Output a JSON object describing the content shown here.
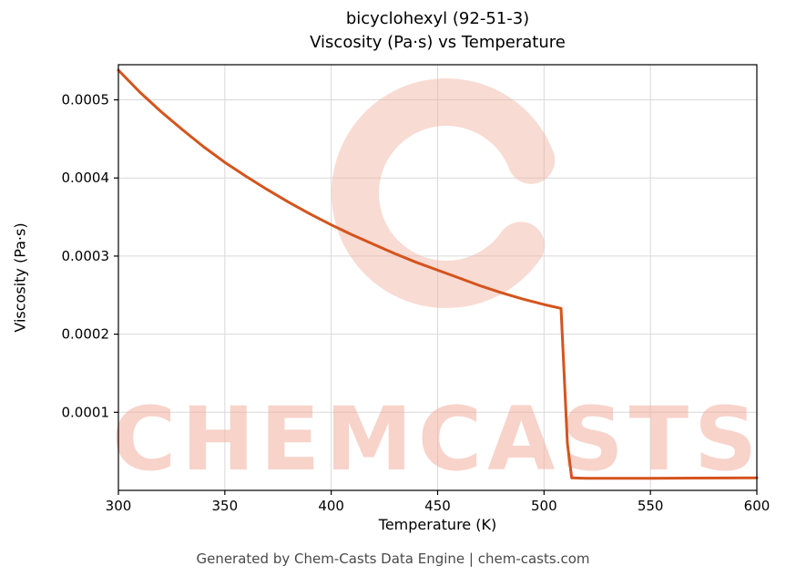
{
  "chart_data": {
    "type": "line",
    "title_line1": "bicyclohexyl (92-51-3)",
    "title_line2": "Viscosity (Pa·s) vs Temperature",
    "xlabel": "Temperature (K)",
    "ylabel": "Viscosity (Pa·s)",
    "xlim": [
      300,
      600
    ],
    "ylim": [
      0,
      0.000545
    ],
    "xticks": [
      300,
      350,
      400,
      450,
      500,
      550,
      600
    ],
    "yticks": [
      0.0001,
      0.0002,
      0.0003,
      0.0004,
      0.0005
    ],
    "grid": true,
    "grid_color": "#d9d9d9",
    "line_color": "#d4541d",
    "series": [
      {
        "name": "viscosity",
        "points": [
          [
            300,
            0.000538
          ],
          [
            310,
            0.00051
          ],
          [
            320,
            0.000485
          ],
          [
            330,
            0.000462
          ],
          [
            340,
            0.00044
          ],
          [
            350,
            0.00042
          ],
          [
            360,
            0.000402
          ],
          [
            370,
            0.000385
          ],
          [
            380,
            0.000369
          ],
          [
            390,
            0.000354
          ],
          [
            400,
            0.00034
          ],
          [
            410,
            0.000327
          ],
          [
            420,
            0.000315
          ],
          [
            430,
            0.000303
          ],
          [
            440,
            0.000292
          ],
          [
            450,
            0.000282
          ],
          [
            460,
            0.000272
          ],
          [
            470,
            0.000262
          ],
          [
            480,
            0.000253
          ],
          [
            490,
            0.000245
          ],
          [
            500,
            0.000238
          ],
          [
            508,
            0.000233
          ],
          [
            511,
            6e-05
          ],
          [
            513,
            1.6e-05
          ],
          [
            520,
            1.55e-05
          ],
          [
            550,
            1.55e-05
          ],
          [
            600,
            1.6e-05
          ]
        ]
      }
    ]
  },
  "watermark": {
    "text": "CHEMCASTS",
    "logo": "C-ring",
    "color": "#f1b0a0"
  },
  "footer": {
    "text": "Generated by Chem-Casts Data Engine | chem-casts.com"
  }
}
